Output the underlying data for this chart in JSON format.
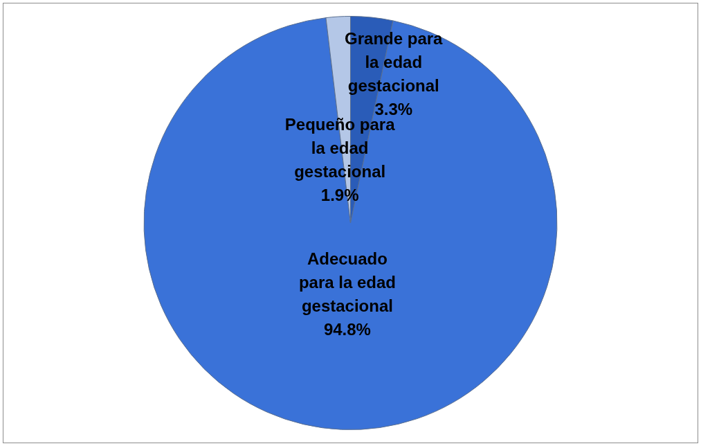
{
  "chart_data": {
    "type": "pie",
    "categories": [
      "Grande para la edad gestacional",
      "Adecuado para la edad gestacional",
      "Pequeño para la edad gestacional"
    ],
    "values": [
      3.3,
      94.8,
      1.9
    ],
    "colors": [
      "#2a5cb8",
      "#3a72d8",
      "#b4c7e7"
    ],
    "value_labels": [
      "3.3%",
      "94.8%",
      "1.9%"
    ],
    "legend": false
  }
}
